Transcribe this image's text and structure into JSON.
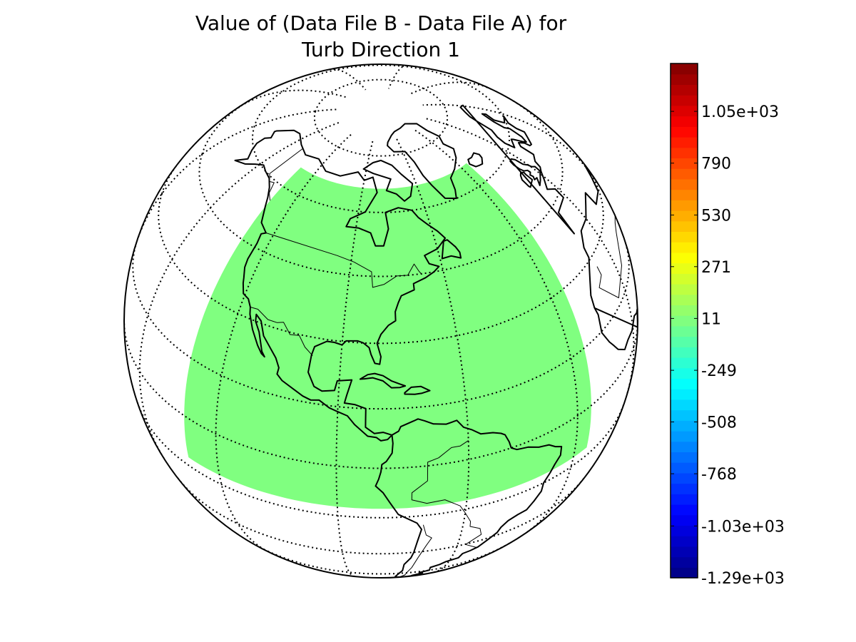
{
  "map": {
    "title_line1": "Value of (Data File B - Data File A) for",
    "title_line2": "Turb Direction 1",
    "projection": "orthographic",
    "center": {
      "lon": -80,
      "lat": 35
    },
    "graticule": {
      "meridian_step_deg": 30,
      "parallel_step_deg": 15
    },
    "field": {
      "uniform_value_color": "#80ff80",
      "lon_range": [
        -130,
        -25
      ],
      "lat_range": [
        -12,
        66
      ]
    },
    "colors": {
      "coastline": "#000000",
      "background": "#ffffff",
      "data_fill": "#80ff80"
    }
  },
  "colorbar": {
    "colormap": "jet",
    "vmin": -1290,
    "vmax": 1290,
    "tick_values": [
      1050,
      790,
      530,
      271,
      11,
      -249,
      -508,
      -768,
      -1030,
      -1290
    ],
    "tick_labels": [
      "1.05e+03",
      "790",
      "530",
      "271",
      "11",
      "-249",
      "-508",
      "-768",
      "-1.03e+03",
      "-1.29e+03"
    ]
  }
}
